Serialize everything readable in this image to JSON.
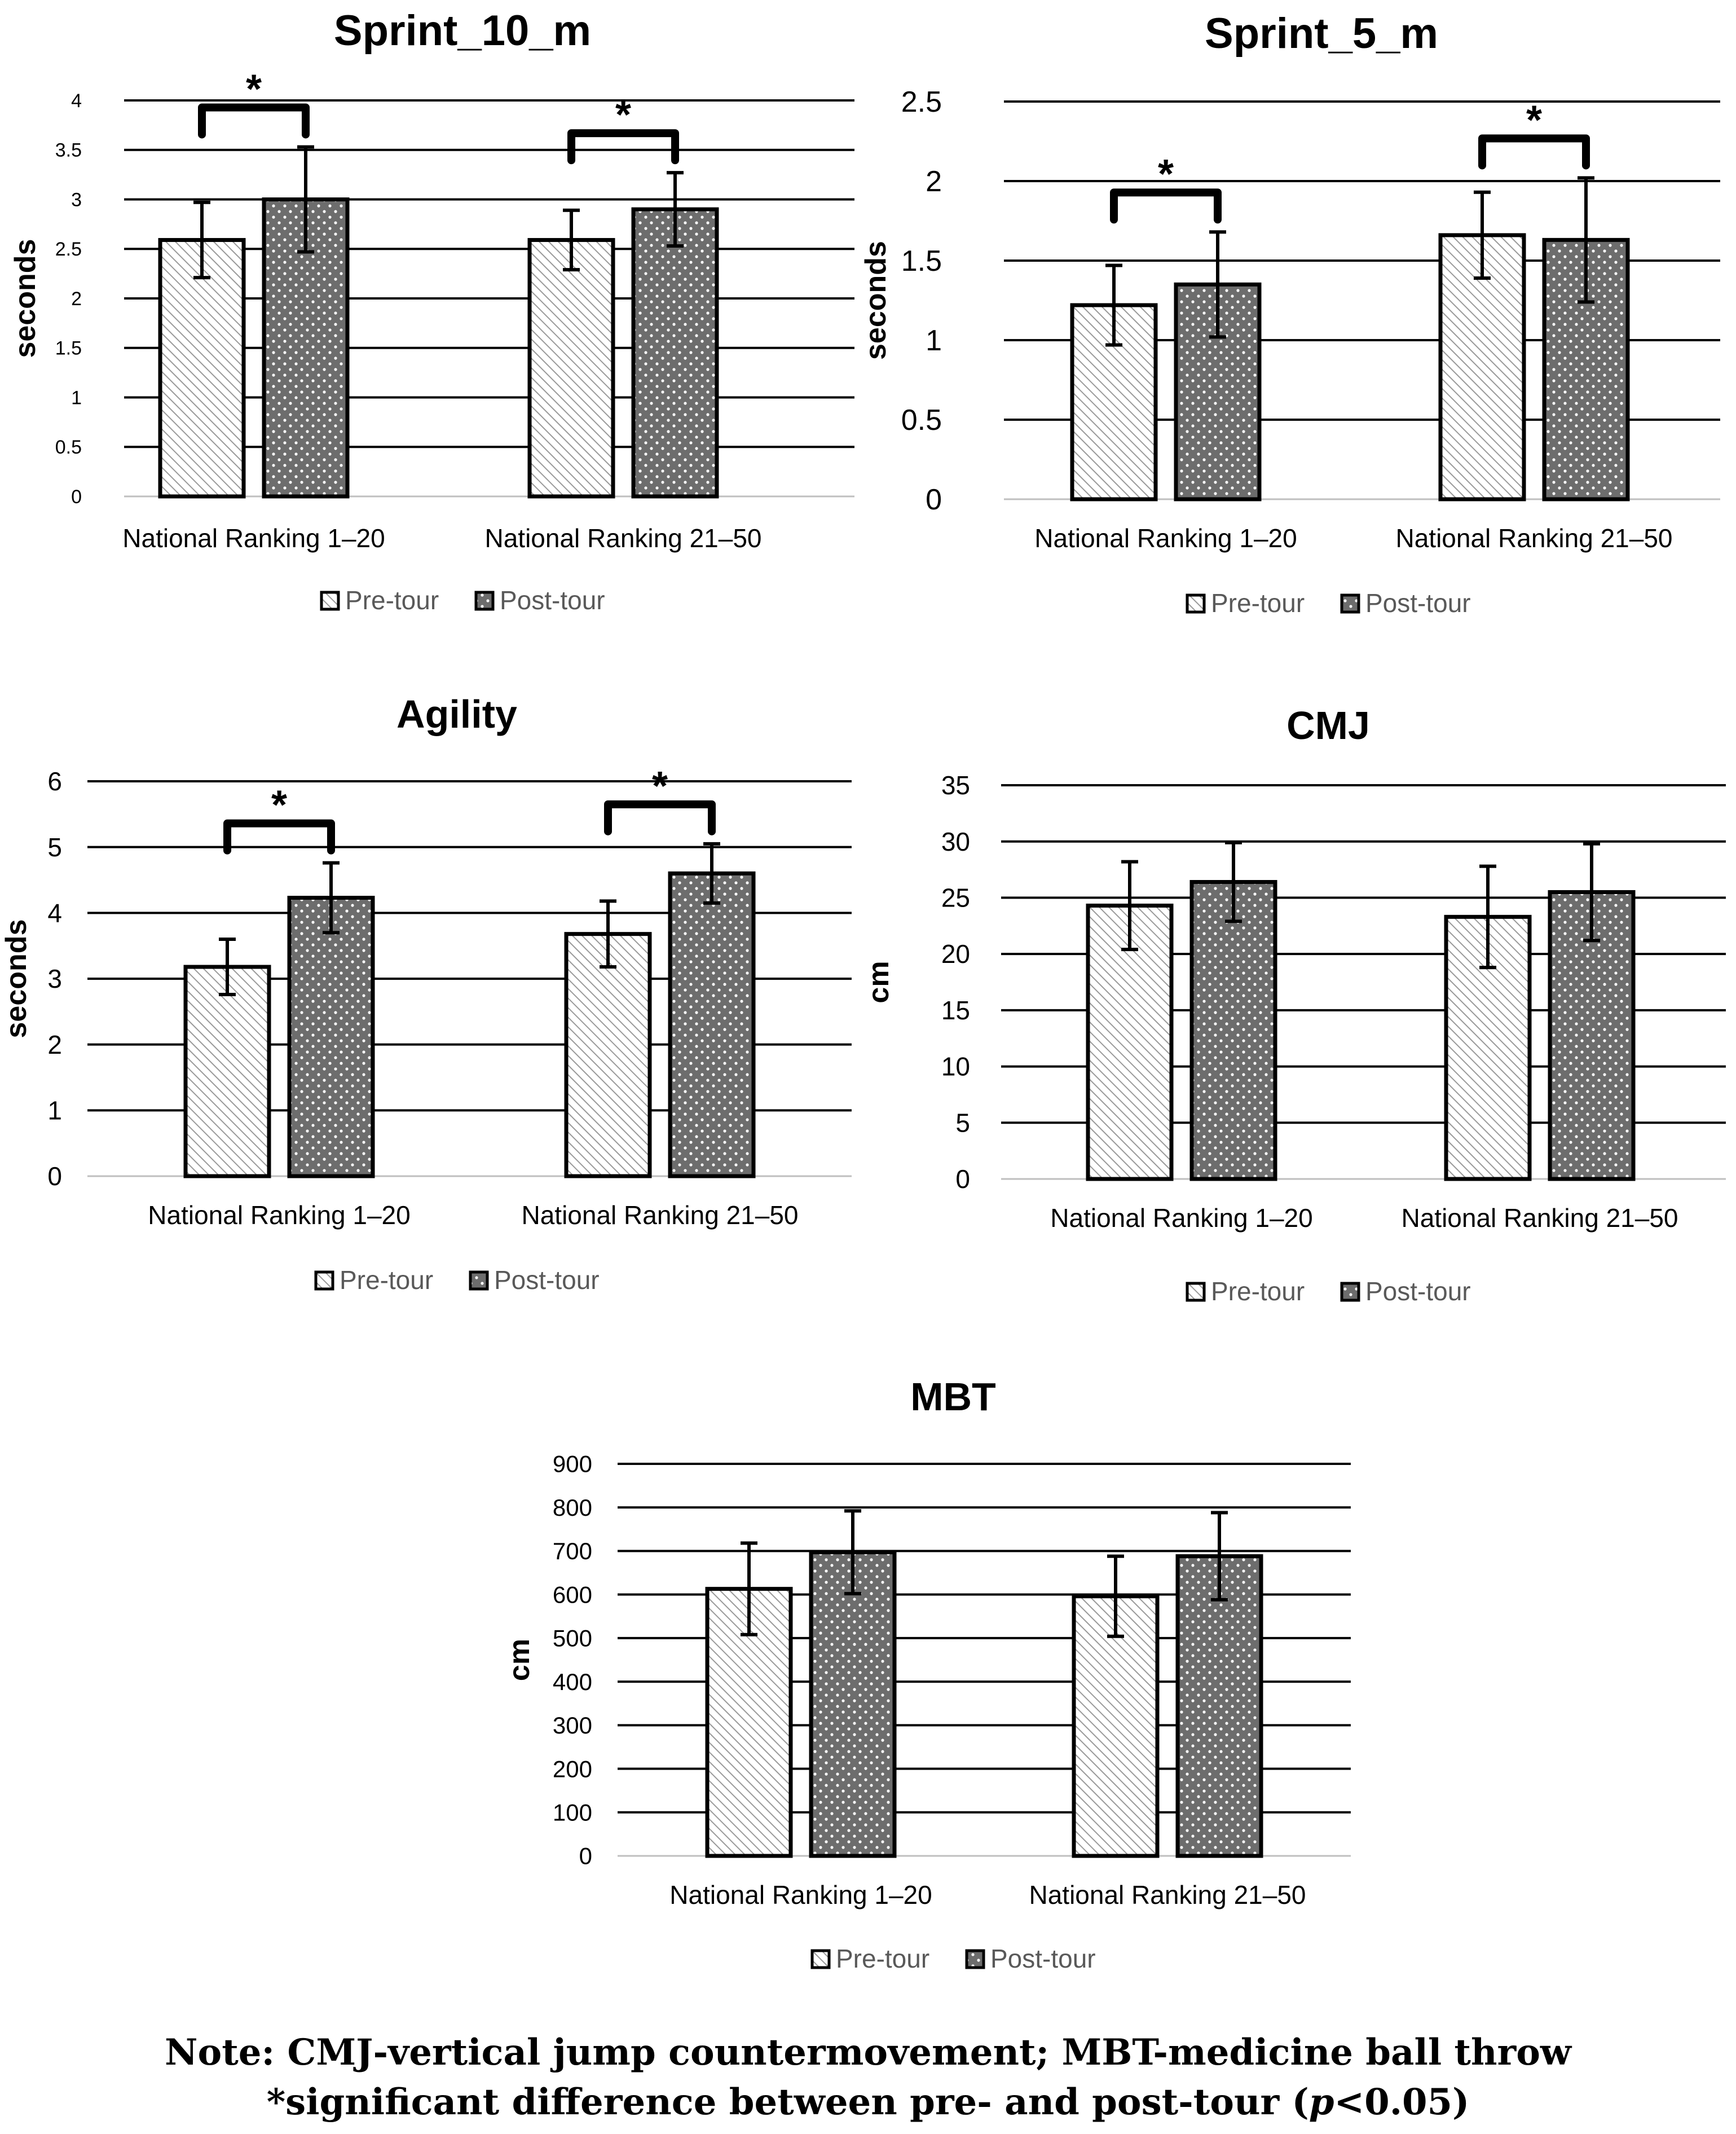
{
  "chart_data": [
    {
      "type": "bar",
      "title": "Sprint_10_m",
      "ylabel": "seconds",
      "xlabel": "",
      "ylim": [
        0,
        4
      ],
      "yticks": [
        0,
        0.5,
        1,
        1.5,
        2,
        2.5,
        3,
        3.5,
        4
      ],
      "categories": [
        "National Ranking 1–20",
        "National Ranking 21–50"
      ],
      "series": [
        {
          "name": "Pre-tour",
          "values": [
            2.59,
            2.59
          ],
          "errors": [
            0.38,
            0.3
          ]
        },
        {
          "name": "Post-tour",
          "values": [
            3.0,
            2.9
          ],
          "errors": [
            0.53,
            0.37
          ]
        }
      ],
      "significance": [
        true,
        true
      ],
      "significance_marker": "*"
    },
    {
      "type": "bar",
      "title": "Sprint_5_m",
      "ylabel": "seconds",
      "xlabel": "",
      "ylim": [
        0,
        2.5
      ],
      "yticks": [
        0,
        0.5,
        1,
        1.5,
        2,
        2.5
      ],
      "categories": [
        "National Ranking 1–20",
        "National Ranking 21–50"
      ],
      "series": [
        {
          "name": "Pre-tour",
          "values": [
            1.22,
            1.66
          ],
          "errors": [
            0.25,
            0.27
          ]
        },
        {
          "name": "Post-tour",
          "values": [
            1.35,
            1.63
          ],
          "errors": [
            0.33,
            0.39
          ]
        }
      ],
      "significance": [
        true,
        true
      ],
      "significance_marker": "*"
    },
    {
      "type": "bar",
      "title": "Agility",
      "ylabel": "seconds",
      "xlabel": "",
      "ylim": [
        0,
        6
      ],
      "yticks": [
        0,
        1,
        2,
        3,
        4,
        5,
        6
      ],
      "categories": [
        "National Ranking 1–20",
        "National Ranking 21–50"
      ],
      "series": [
        {
          "name": "Pre-tour",
          "values": [
            3.18,
            3.68
          ],
          "errors": [
            0.42,
            0.5
          ]
        },
        {
          "name": "Post-tour",
          "values": [
            4.23,
            4.6
          ],
          "errors": [
            0.53,
            0.45
          ]
        }
      ],
      "significance": [
        true,
        true
      ],
      "significance_marker": "*"
    },
    {
      "type": "bar",
      "title": "CMJ",
      "ylabel": "cm",
      "xlabel": "",
      "ylim": [
        0,
        35
      ],
      "yticks": [
        0,
        5,
        10,
        15,
        20,
        25,
        30,
        35
      ],
      "categories": [
        "National Ranking 1–20",
        "National Ranking 21–50"
      ],
      "series": [
        {
          "name": "Pre-tour",
          "values": [
            24.3,
            23.3
          ],
          "errors": [
            3.9,
            4.5
          ]
        },
        {
          "name": "Post-tour",
          "values": [
            26.4,
            25.5
          ],
          "errors": [
            3.5,
            4.3
          ]
        }
      ],
      "significance": [
        false,
        false
      ],
      "significance_marker": "*"
    },
    {
      "type": "bar",
      "title": "MBT",
      "ylabel": "cm",
      "xlabel": "",
      "ylim": [
        0,
        900
      ],
      "yticks": [
        0,
        100,
        200,
        300,
        400,
        500,
        600,
        700,
        800,
        900
      ],
      "categories": [
        "National Ranking 1–20",
        "National Ranking 21–50"
      ],
      "series": [
        {
          "name": "Pre-tour",
          "values": [
            613,
            596
          ],
          "errors": [
            105,
            92
          ]
        },
        {
          "name": "Post-tour",
          "values": [
            697,
            688
          ],
          "errors": [
            95,
            100
          ]
        }
      ],
      "significance": [
        false,
        false
      ],
      "significance_marker": "*"
    }
  ],
  "note": {
    "line1": "Note: CMJ-vertical jump countermovement; MBT-medicine ball throw",
    "line2_prefix": "*significant difference between pre- and post-tour (",
    "line2_italic": "p",
    "line2_suffix": "<0.05)"
  },
  "colors": {
    "pre_fill": "#ffffff",
    "pre_hatch": "#9a9a9a",
    "post_fill": "#6d6d6d",
    "post_dots": "#ffffff",
    "grid": "#000000",
    "legend_text": "#595959"
  }
}
